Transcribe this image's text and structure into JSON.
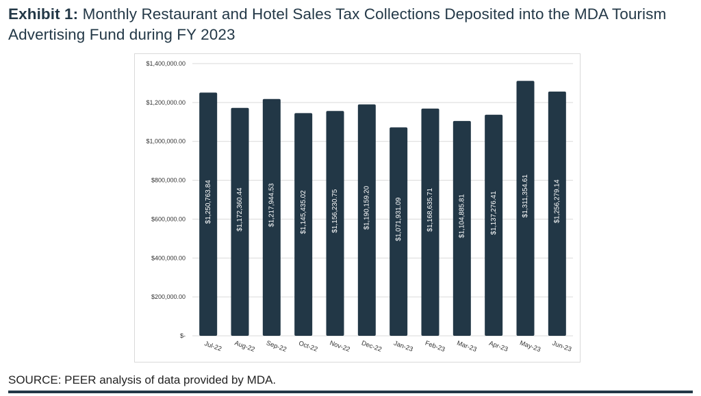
{
  "title": {
    "prefix": "Exhibit 1:",
    "text": " Monthly Restaurant and Hotel Sales Tax Collections Deposited into the MDA Tourism Advertising Fund during FY 2023"
  },
  "source": "SOURCE: PEER analysis of data provided by MDA.",
  "colors": {
    "bar": "#223746",
    "grid": "#d9d9d9",
    "axis_text": "#333333",
    "bar_label": "#ffffff"
  },
  "chart_data": {
    "type": "bar",
    "title": "",
    "xlabel": "",
    "ylabel": "",
    "ylim": [
      0,
      1400000
    ],
    "yticks": [
      0,
      200000,
      400000,
      600000,
      800000,
      1000000,
      1200000,
      1400000
    ],
    "ytick_labels": [
      "$-",
      "$200,000.00",
      "$400,000.00",
      "$600,000.00",
      "$800,000.00",
      "$1,000,000.00",
      "$1,200,000.00",
      "$1,400,000.00"
    ],
    "grid": true,
    "categories": [
      "Jul-22",
      "Aug-22",
      "Sep-22",
      "Oct-22",
      "Nov-22",
      "Dec-22",
      "Jan-23",
      "Feb-23",
      "Mar-23",
      "Apr-23",
      "May-23",
      "Jun-23"
    ],
    "values": [
      1250763.84,
      1172360.44,
      1217944.53,
      1145435.02,
      1156230.75,
      1190159.2,
      1071931.09,
      1168635.71,
      1104885.81,
      1137276.41,
      1311354.61,
      1256279.14
    ],
    "data_labels": [
      "$1,250,763.84",
      "$1,172,360.44",
      "$1,217,944.53",
      "$1,145,435.02",
      "$1,156,230.75",
      "$1,190,159.20",
      "$1,071,931.09",
      "$1,168,635.71",
      "$1,104,885.81",
      "$1,137,276.41",
      "$1,311,354.61",
      "$1,256,279.14"
    ]
  }
}
